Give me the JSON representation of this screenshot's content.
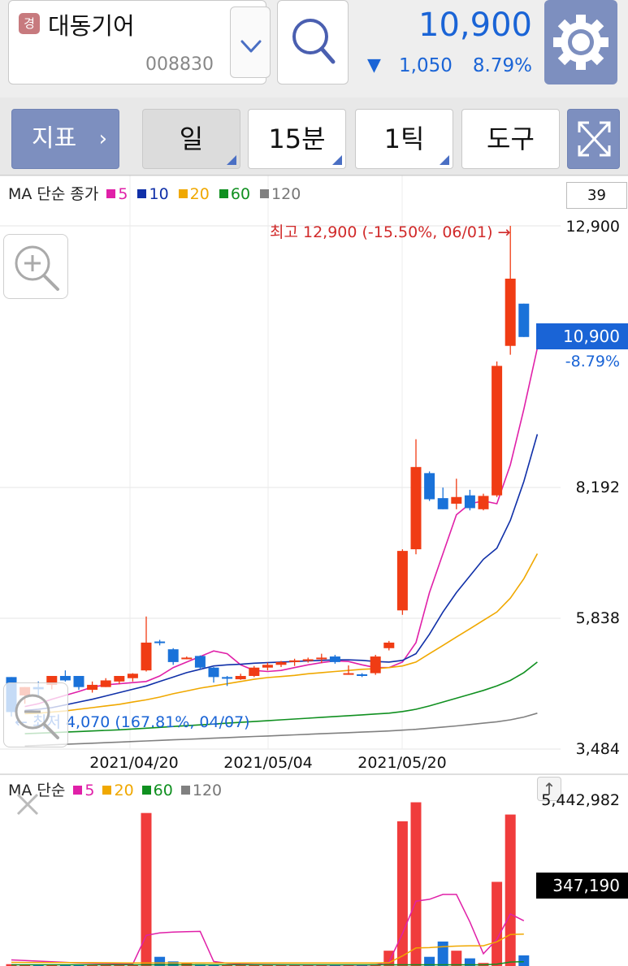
{
  "header": {
    "market_badge": "경",
    "stock_name": "대동기어",
    "stock_code": "008830",
    "price": "10,900",
    "change_arrow": "▼",
    "change_value": "1,050",
    "change_pct": "8.79%",
    "colors": {
      "down": "#1a64d6",
      "up": "#d12a2a",
      "accent": "#7d8fbf"
    }
  },
  "toolbar": {
    "indicator_label": "지표",
    "indicator_chevron": "›",
    "period_day": "일",
    "period_15m": "15분",
    "period_tick": "1틱",
    "tools": "도구"
  },
  "chart": {
    "ma_legend_title": "MA 단순 종가",
    "ma_items": [
      {
        "label": "5",
        "color": "#e020a8"
      },
      {
        "label": "10",
        "color": "#1030a8"
      },
      {
        "label": "20",
        "color": "#f0a800"
      },
      {
        "label": "60",
        "color": "#109020"
      },
      {
        "label": "120",
        "color": "#808080"
      }
    ],
    "candle_count": "39",
    "y_axis_labels": [
      "12,900",
      "8,192",
      "5,838",
      "3,484"
    ],
    "current_price_label": "10,900",
    "current_pct_label": "-8.79%",
    "high_note": "최고 12,900 (-15.50%, 06/01) →",
    "low_note": "← 최저 4,070 (167.81%, 04/07)",
    "x_axis_labels": [
      "2021/04/20",
      "2021/05/04",
      "2021/05/20"
    ],
    "volume_legend_title": "MA 단순",
    "volume_ma_items": [
      {
        "label": "5",
        "color": "#e020a8"
      },
      {
        "label": "20",
        "color": "#f0a800"
      },
      {
        "label": "60",
        "color": "#109020"
      },
      {
        "label": "120",
        "color": "#808080"
      }
    ],
    "volume_axis_top": "5,442,982",
    "volume_current_label": "347,190",
    "scroll_up_glyph": "↑"
  },
  "chart_data": {
    "type": "candlestick",
    "price_axis": {
      "min": 3484,
      "max": 12900,
      "ticks": [
        3484,
        5838,
        8192,
        12900
      ]
    },
    "x_tick_labels": [
      "2021/04/20",
      "2021/05/04",
      "2021/05/20"
    ],
    "candles": [
      {
        "o": 4780,
        "h": 4780,
        "l": 4070,
        "c": 4150
      },
      {
        "o": 4450,
        "h": 4600,
        "l": 4300,
        "c": 4600
      },
      {
        "o": 4600,
        "h": 4700,
        "l": 4450,
        "c": 4560
      },
      {
        "o": 4640,
        "h": 4800,
        "l": 4560,
        "c": 4800
      },
      {
        "o": 4800,
        "h": 4900,
        "l": 4700,
        "c": 4720
      },
      {
        "o": 4800,
        "h": 4800,
        "l": 4550,
        "c": 4600
      },
      {
        "o": 4550,
        "h": 4700,
        "l": 4500,
        "c": 4640
      },
      {
        "o": 4600,
        "h": 4760,
        "l": 4600,
        "c": 4720
      },
      {
        "o": 4700,
        "h": 4800,
        "l": 4650,
        "c": 4800
      },
      {
        "o": 4760,
        "h": 4850,
        "l": 4700,
        "c": 4840
      },
      {
        "o": 4900,
        "h": 5870,
        "l": 4880,
        "c": 5400
      },
      {
        "o": 5420,
        "h": 5450,
        "l": 5350,
        "c": 5400
      },
      {
        "o": 5280,
        "h": 5300,
        "l": 5000,
        "c": 5050
      },
      {
        "o": 5120,
        "h": 5150,
        "l": 5100,
        "c": 5130
      },
      {
        "o": 5160,
        "h": 5170,
        "l": 4920,
        "c": 4950
      },
      {
        "o": 4950,
        "h": 4960,
        "l": 4680,
        "c": 4780
      },
      {
        "o": 4780,
        "h": 4800,
        "l": 4620,
        "c": 4750
      },
      {
        "o": 4740,
        "h": 4840,
        "l": 4730,
        "c": 4800
      },
      {
        "o": 4800,
        "h": 4980,
        "l": 4780,
        "c": 4950
      },
      {
        "o": 4950,
        "h": 5040,
        "l": 4900,
        "c": 5000
      },
      {
        "o": 5000,
        "h": 5070,
        "l": 4960,
        "c": 5050
      },
      {
        "o": 5050,
        "h": 5110,
        "l": 4980,
        "c": 5080
      },
      {
        "o": 5080,
        "h": 5130,
        "l": 5040,
        "c": 5100
      },
      {
        "o": 5100,
        "h": 5200,
        "l": 5030,
        "c": 5130
      },
      {
        "o": 5150,
        "h": 5180,
        "l": 5020,
        "c": 5050
      },
      {
        "o": 4850,
        "h": 4990,
        "l": 4820,
        "c": 4850
      },
      {
        "o": 4830,
        "h": 4850,
        "l": 4780,
        "c": 4800
      },
      {
        "o": 4850,
        "h": 5180,
        "l": 4820,
        "c": 5150
      },
      {
        "o": 5300,
        "h": 5430,
        "l": 5260,
        "c": 5400
      },
      {
        "o": 5980,
        "h": 7080,
        "l": 5900,
        "c": 7050
      },
      {
        "o": 7080,
        "h": 9060,
        "l": 6990,
        "c": 8560
      },
      {
        "o": 8450,
        "h": 8480,
        "l": 7950,
        "c": 7980
      },
      {
        "o": 8000,
        "h": 8190,
        "l": 7800,
        "c": 7800
      },
      {
        "o": 7900,
        "h": 8350,
        "l": 7800,
        "c": 8020
      },
      {
        "o": 8050,
        "h": 8150,
        "l": 7780,
        "c": 7820
      },
      {
        "o": 7800,
        "h": 8080,
        "l": 7780,
        "c": 8040
      },
      {
        "o": 8050,
        "h": 10460,
        "l": 8020,
        "c": 10380
      },
      {
        "o": 10740,
        "h": 12900,
        "l": 10580,
        "c": 11950
      },
      {
        "o": 11500,
        "h": 11500,
        "l": 10900,
        "c": 10900
      }
    ],
    "moving_averages": [
      {
        "name": "5",
        "color": "#e020a8",
        "values": [
          4250,
          4300,
          4380,
          4450,
          4520,
          4600,
          4640,
          4660,
          4680,
          4700,
          4800,
          4950,
          5050,
          5150,
          5250,
          5200,
          5000,
          4900,
          4880,
          4900,
          4950,
          5000,
          5040,
          5070,
          5060,
          5000,
          4950,
          4950,
          5050,
          5400,
          6300,
          7000,
          7700,
          7900,
          7950,
          7900,
          8600,
          9600,
          10700
        ]
      },
      {
        "name": "10",
        "color": "#1030a8",
        "values": [
          4180,
          4200,
          4230,
          4280,
          4330,
          4380,
          4440,
          4500,
          4560,
          4620,
          4700,
          4780,
          4860,
          4920,
          4980,
          5000,
          5010,
          5030,
          5040,
          5050,
          5060,
          5070,
          5080,
          5090,
          5090,
          5080,
          5060,
          5050,
          5080,
          5200,
          5550,
          5950,
          6300,
          6600,
          6900,
          7100,
          7600,
          8300,
          9150
        ]
      },
      {
        "name": "20",
        "color": "#f0a800",
        "values": [
          4120,
          4130,
          4150,
          4170,
          4200,
          4230,
          4260,
          4290,
          4330,
          4370,
          4420,
          4480,
          4530,
          4580,
          4620,
          4660,
          4700,
          4740,
          4770,
          4790,
          4810,
          4840,
          4860,
          4880,
          4900,
          4920,
          4930,
          4950,
          4980,
          5050,
          5200,
          5350,
          5500,
          5650,
          5800,
          5950,
          6200,
          6550,
          7000
        ]
      },
      {
        "name": "60",
        "color": "#109020",
        "values": [
          3760,
          3770,
          3780,
          3790,
          3800,
          3810,
          3820,
          3830,
          3845,
          3860,
          3875,
          3890,
          3905,
          3920,
          3935,
          3950,
          3965,
          3980,
          3995,
          4010,
          4025,
          4040,
          4055,
          4070,
          4085,
          4100,
          4115,
          4130,
          4160,
          4200,
          4260,
          4330,
          4400,
          4470,
          4540,
          4620,
          4720,
          4860,
          5050
        ]
      },
      {
        "name": "120",
        "color": "#808080",
        "values": [
          3540,
          3550,
          3560,
          3570,
          3580,
          3590,
          3600,
          3610,
          3620,
          3630,
          3640,
          3650,
          3660,
          3670,
          3680,
          3690,
          3700,
          3710,
          3720,
          3730,
          3740,
          3750,
          3760,
          3770,
          3780,
          3790,
          3800,
          3810,
          3825,
          3840,
          3860,
          3880,
          3900,
          3925,
          3950,
          3975,
          4010,
          4060,
          4130
        ]
      }
    ],
    "volume_axis_max": 5442982,
    "volumes": [
      60000,
      50000,
      40000,
      40000,
      30000,
      30000,
      30000,
      30000,
      30000,
      30000,
      5000000,
      300000,
      150000,
      80000,
      60000,
      50000,
      50000,
      40000,
      40000,
      40000,
      40000,
      30000,
      30000,
      30000,
      30000,
      30000,
      30000,
      60000,
      500000,
      4730000,
      5350000,
      300000,
      800000,
      500000,
      250000,
      100000,
      2750000,
      4950000,
      347190
    ],
    "volume_up": [
      true,
      true,
      false,
      true,
      false,
      false,
      true,
      true,
      true,
      true,
      true,
      false,
      false,
      true,
      false,
      false,
      true,
      true,
      true,
      true,
      true,
      true,
      true,
      true,
      false,
      true,
      false,
      true,
      true,
      true,
      true,
      false,
      false,
      true,
      false,
      true,
      true,
      true,
      false
    ],
    "volume_ma5": [
      200000,
      180000,
      160000,
      140000,
      120000,
      100000,
      90000,
      80000,
      70000,
      60000,
      1000000,
      1080000,
      1110000,
      1120000,
      1130000,
      150000,
      90000,
      60000,
      50000,
      45000,
      40000,
      38000,
      35000,
      33000,
      32000,
      31000,
      30000,
      36000,
      128000,
      1060000,
      2120000,
      2180000,
      2340000,
      2340000,
      1440000,
      400000,
      870000,
      1700000,
      1480000
    ],
    "volume_ma20": [
      120000,
      118000,
      116000,
      114000,
      112000,
      110000,
      108000,
      106000,
      104000,
      102000,
      100000,
      100000,
      100000,
      100000,
      100000,
      100000,
      100000,
      100000,
      100000,
      100000,
      100000,
      100000,
      100000,
      100000,
      100000,
      100000,
      100000,
      100000,
      110000,
      330000,
      590000,
      600000,
      630000,
      650000,
      660000,
      660000,
      790000,
      1030000,
      1040000
    ],
    "volume_ma60": [
      40000,
      40000,
      40000,
      40000,
      40000,
      40000,
      40000,
      40000,
      40000,
      40000,
      40000,
      40000,
      40000,
      40000,
      40000,
      40000,
      40000,
      40000,
      40000,
      40000,
      40000,
      40000,
      40000,
      40000,
      40000,
      40000,
      40000,
      40000,
      40000,
      40000,
      40000,
      40000,
      40000,
      40000,
      40000,
      40000,
      60000,
      130000,
      140000
    ]
  }
}
